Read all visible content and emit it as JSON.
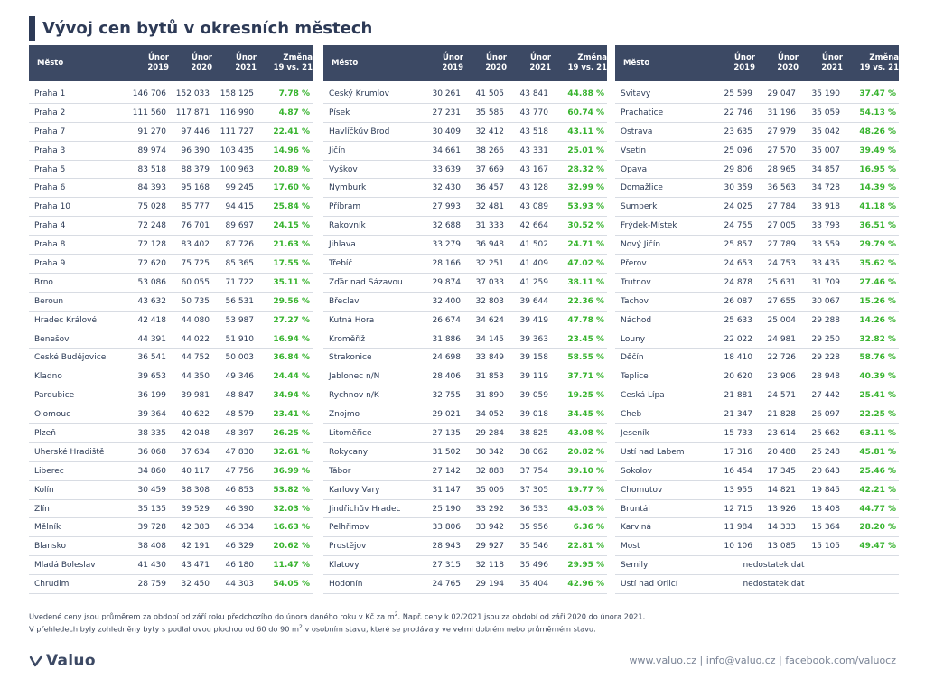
{
  "title": "Vývoj cen bytů v okresních městech",
  "headers": {
    "city": "Město",
    "feb2019": [
      "Únor",
      "2019"
    ],
    "feb2020": [
      "Únor",
      "2020"
    ],
    "feb2021": [
      "Únor",
      "2021"
    ],
    "change": [
      "Změna",
      "19 vs. 21"
    ]
  },
  "tables": [
    [
      [
        "Praha 1",
        "146 706",
        "152 033",
        "158 125",
        "7.78 %"
      ],
      [
        "Praha 2",
        "111 560",
        "117 871",
        "116 990",
        "4.87 %"
      ],
      [
        "Praha 7",
        "91 270",
        "97 446",
        "111 727",
        "22.41 %"
      ],
      [
        "Praha 3",
        "89 974",
        "96 390",
        "103 435",
        "14.96 %"
      ],
      [
        "Praha 5",
        "83 518",
        "88 379",
        "100 963",
        "20.89 %"
      ],
      [
        "Praha 6",
        "84 393",
        "95 168",
        "99 245",
        "17.60 %"
      ],
      [
        "Praha 10",
        "75 028",
        "85 777",
        "94 415",
        "25.84 %"
      ],
      [
        "Praha 4",
        "72 248",
        "76 701",
        "89 697",
        "24.15 %"
      ],
      [
        "Praha 8",
        "72 128",
        "83 402",
        "87 726",
        "21.63 %"
      ],
      [
        "Praha 9",
        "72 620",
        "75 725",
        "85 365",
        "17.55 %"
      ],
      [
        "Brno",
        "53 086",
        "60 055",
        "71 722",
        "35.11 %"
      ],
      [
        "Beroun",
        "43 632",
        "50 735",
        "56 531",
        "29.56 %"
      ],
      [
        "Hradec Králové",
        "42 418",
        "44 080",
        "53 987",
        "27.27 %"
      ],
      [
        "Benešov",
        "44 391",
        "44 022",
        "51 910",
        "16.94 %"
      ],
      [
        "České Budějovice",
        "36 541",
        "44 752",
        "50 003",
        "36.84 %"
      ],
      [
        "Kladno",
        "39 653",
        "44 350",
        "49 346",
        "24.44 %"
      ],
      [
        "Pardubice",
        "36 199",
        "39 981",
        "48 847",
        "34.94 %"
      ],
      [
        "Olomouc",
        "39 364",
        "40 622",
        "48 579",
        "23.41 %"
      ],
      [
        "Plzeň",
        "38 335",
        "42 048",
        "48 397",
        "26.25 %"
      ],
      [
        "Uherské Hradiště",
        "36 068",
        "37 634",
        "47 830",
        "32.61 %"
      ],
      [
        "Liberec",
        "34 860",
        "40 117",
        "47 756",
        "36.99 %"
      ],
      [
        "Kolín",
        "30 459",
        "38 308",
        "46 853",
        "53.82 %"
      ],
      [
        "Zlín",
        "35 135",
        "39 529",
        "46 390",
        "32.03 %"
      ],
      [
        "Mělník",
        "39 728",
        "42 383",
        "46 334",
        "16.63 %"
      ],
      [
        "Blansko",
        "38 408",
        "42 191",
        "46 329",
        "20.62 %"
      ],
      [
        "Mladá Boleslav",
        "41 430",
        "43 471",
        "46 180",
        "11.47 %"
      ],
      [
        "Chrudim",
        "28 759",
        "32 450",
        "44 303",
        "54.05 %"
      ]
    ],
    [
      [
        "Český Krumlov",
        "30 261",
        "41 505",
        "43 841",
        "44.88 %"
      ],
      [
        "Písek",
        "27 231",
        "35 585",
        "43 770",
        "60.74 %"
      ],
      [
        "Havlíčkův Brod",
        "30 409",
        "32 412",
        "43 518",
        "43.11 %"
      ],
      [
        "Jičín",
        "34 661",
        "38 266",
        "43 331",
        "25.01 %"
      ],
      [
        "Vyškov",
        "33 639",
        "37 669",
        "43 167",
        "28.32 %"
      ],
      [
        "Nymburk",
        "32 430",
        "36 457",
        "43 128",
        "32.99 %"
      ],
      [
        "Příbram",
        "27 993",
        "32 481",
        "43 089",
        "53.93 %"
      ],
      [
        "Rakovník",
        "32 688",
        "31 333",
        "42 664",
        "30.52 %"
      ],
      [
        "Jihlava",
        "33 279",
        "36 948",
        "41 502",
        "24.71 %"
      ],
      [
        "Třebíč",
        "28 166",
        "32 251",
        "41 409",
        "47.02 %"
      ],
      [
        "Žďár nad Sázavou",
        "29 874",
        "37 033",
        "41 259",
        "38.11 %"
      ],
      [
        "Břeclav",
        "32 400",
        "32 803",
        "39 644",
        "22.36 %"
      ],
      [
        "Kutná Hora",
        "26 674",
        "34 624",
        "39 419",
        "47.78 %"
      ],
      [
        "Kroměříž",
        "31 886",
        "34 145",
        "39 363",
        "23.45 %"
      ],
      [
        "Strakonice",
        "24 698",
        "33 849",
        "39 158",
        "58.55 %"
      ],
      [
        "Jablonec n/N",
        "28 406",
        "31 853",
        "39 119",
        "37.71 %"
      ],
      [
        "Rychnov n/K",
        "32 755",
        "31 890",
        "39 059",
        "19.25 %"
      ],
      [
        "Znojmo",
        "29 021",
        "34 052",
        "39 018",
        "34.45 %"
      ],
      [
        "Litoměřice",
        "27 135",
        "29 284",
        "38 825",
        "43.08 %"
      ],
      [
        "Rokycany",
        "31 502",
        "30 342",
        "38 062",
        "20.82 %"
      ],
      [
        "Tábor",
        "27 142",
        "32 888",
        "37 754",
        "39.10 %"
      ],
      [
        "Karlovy Vary",
        "31 147",
        "35 006",
        "37 305",
        "19.77 %"
      ],
      [
        "Jindřichův Hradec",
        "25 190",
        "33 292",
        "36 533",
        "45.03 %"
      ],
      [
        "Pelhřimov",
        "33 806",
        "33 942",
        "35 956",
        "6.36 %"
      ],
      [
        "Prostějov",
        "28 943",
        "29 927",
        "35 546",
        "22.81 %"
      ],
      [
        "Klatovy",
        "27 315",
        "32 118",
        "35 496",
        "29.95 %"
      ],
      [
        "Hodonín",
        "24 765",
        "29 194",
        "35 404",
        "42.96 %"
      ]
    ],
    [
      [
        "Svitavy",
        "25 599",
        "29 047",
        "35 190",
        "37.47 %"
      ],
      [
        "Prachatice",
        "22 746",
        "31 196",
        "35 059",
        "54.13 %"
      ],
      [
        "Ostrava",
        "23 635",
        "27 979",
        "35 042",
        "48.26 %"
      ],
      [
        "Vsetín",
        "25 096",
        "27 570",
        "35 007",
        "39.49 %"
      ],
      [
        "Opava",
        "29 806",
        "28 965",
        "34 857",
        "16.95 %"
      ],
      [
        "Domažlice",
        "30 359",
        "36 563",
        "34 728",
        "14.39 %"
      ],
      [
        "Šumperk",
        "24 025",
        "27 784",
        "33 918",
        "41.18 %"
      ],
      [
        "Frýdek-Místek",
        "24 755",
        "27 005",
        "33 793",
        "36.51 %"
      ],
      [
        "Nový Jičín",
        "25 857",
        "27 789",
        "33 559",
        "29.79 %"
      ],
      [
        "Přerov",
        "24 653",
        "24 753",
        "33 435",
        "35.62 %"
      ],
      [
        "Trutnov",
        "24 878",
        "25 631",
        "31 709",
        "27.46 %"
      ],
      [
        "Tachov",
        "26 087",
        "27 655",
        "30 067",
        "15.26 %"
      ],
      [
        "Náchod",
        "25 633",
        "25 004",
        "29 288",
        "14.26 %"
      ],
      [
        "Louny",
        "22 022",
        "24 981",
        "29 250",
        "32.82 %"
      ],
      [
        "Děčín",
        "18 410",
        "22 726",
        "29 228",
        "58.76 %"
      ],
      [
        "Teplice",
        "20 620",
        "23 906",
        "28 948",
        "40.39 %"
      ],
      [
        "Česká Lípa",
        "21 881",
        "24 571",
        "27 442",
        "25.41 %"
      ],
      [
        "Cheb",
        "21 347",
        "21 828",
        "26 097",
        "22.25 %"
      ],
      [
        "Jeseník",
        "15 733",
        "23 614",
        "25 662",
        "63.11 %"
      ],
      [
        "Ústí nad Labem",
        "17 316",
        "20 488",
        "25 248",
        "45.81 %"
      ],
      [
        "Sokolov",
        "16 454",
        "17 345",
        "20 643",
        "25.46 %"
      ],
      [
        "Chomutov",
        "13 955",
        "14 821",
        "19 845",
        "42.21 %"
      ],
      [
        "Bruntál",
        "12 715",
        "13 926",
        "18 408",
        "44.77 %"
      ],
      [
        "Karviná",
        "11 984",
        "14 333",
        "15 364",
        "28.20 %"
      ],
      [
        "Most",
        "10 106",
        "13 085",
        "15 105",
        "49.47 %"
      ],
      [
        "Semily",
        "nedostatek dat"
      ],
      [
        "Ústí nad Orlicí",
        "nedostatek dat"
      ]
    ]
  ],
  "notes": {
    "line1_a": "Uvedené ceny jsou průměrem za období od září roku předchozího do února daného roku v Kč za m",
    "line1_sup": "2",
    "line1_b": ". Např. ceny k 02/2021 jsou za období od září 2020 do února 2021.",
    "line2_a": "V přehledech byly zohledněny byty s podlahovou plochou od 60 do 90 m",
    "line2_sup": "2",
    "line2_b": " v osobním stavu, které se prodávaly ve velmi dobrém nebo průměrném stavu."
  },
  "logo": {
    "text": "Valuo"
  },
  "footer": "www.valuo.cz | info@valuo.cz | facebook.com/valuocz",
  "colors": {
    "header_bg": "#3c4964",
    "accent_green": "#37b32e",
    "title": "#2d3a56"
  }
}
